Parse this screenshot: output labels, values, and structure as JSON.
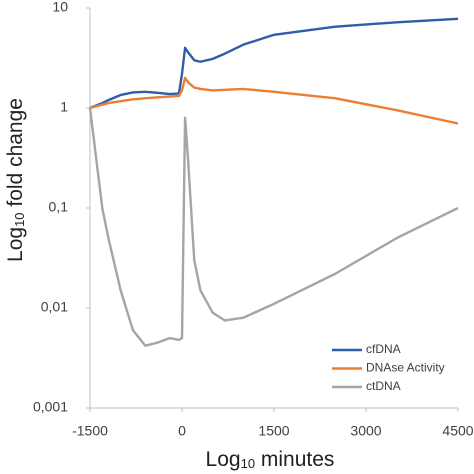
{
  "chart_data": {
    "type": "line",
    "xlabel": [
      "Log",
      "10",
      " minutes"
    ],
    "ylabel": [
      "Log",
      "10",
      " fold change"
    ],
    "x": [
      -1500,
      -1300,
      -1200,
      -1000,
      -800,
      -600,
      -400,
      -200,
      -50,
      0,
      50,
      100,
      200,
      300,
      500,
      700,
      1000,
      1500,
      2500,
      3500,
      4500
    ],
    "series": [
      {
        "name": "cfDNA",
        "color": "#2f5ea8",
        "values": [
          1,
          1.12,
          1.2,
          1.35,
          1.43,
          1.45,
          1.42,
          1.38,
          1.4,
          2.2,
          4,
          3.6,
          3.0,
          2.9,
          3.1,
          3.5,
          4.3,
          5.4,
          6.5,
          7.2,
          7.8
        ]
      },
      {
        "name": "DNAse Activity",
        "color": "#ed7d31",
        "values": [
          1,
          1.08,
          1.12,
          1.17,
          1.22,
          1.25,
          1.28,
          1.3,
          1.32,
          1.5,
          2.0,
          1.8,
          1.6,
          1.55,
          1.5,
          1.52,
          1.55,
          1.45,
          1.25,
          0.95,
          0.7
        ]
      },
      {
        "name": "ctDNA",
        "color": "#a5a5a5",
        "values": [
          1,
          0.1,
          0.05,
          0.015,
          0.006,
          0.0042,
          0.0045,
          0.005,
          0.0048,
          0.005,
          0.8,
          0.3,
          0.03,
          0.015,
          0.009,
          0.0075,
          0.008,
          0.011,
          0.022,
          0.05,
          0.1
        ]
      }
    ],
    "xlim": [
      -1500,
      4500
    ],
    "xticks": [
      -1500,
      0,
      1500,
      3000,
      4500
    ],
    "ylim": [
      0.001,
      10
    ],
    "yticks": [
      {
        "value": 0.001,
        "label": "0,001"
      },
      {
        "value": 0.01,
        "label": "0,01"
      },
      {
        "value": 0.1,
        "label": "0,1"
      },
      1,
      10
    ],
    "log_y": true,
    "grid": false,
    "legend": "bottom-right"
  }
}
